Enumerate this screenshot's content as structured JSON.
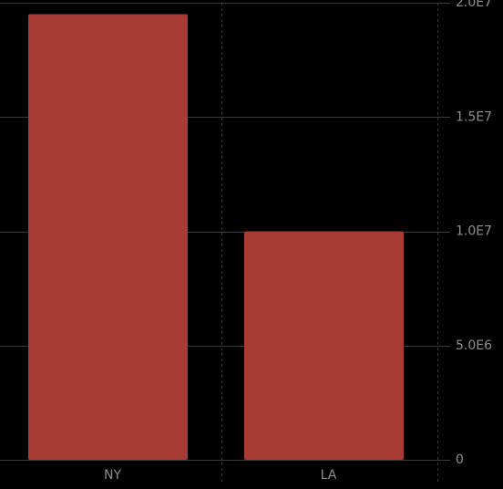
{
  "chart_data": {
    "type": "bar",
    "categories": [
      "NY",
      "LA"
    ],
    "values": [
      19500000,
      10000000
    ],
    "ylim": [
      0,
      20000000
    ],
    "yticks": [
      0,
      5000000,
      10000000,
      15000000,
      20000000
    ],
    "ytick_labels": [
      "0",
      "5.0E6",
      "1.0E7",
      "1.5E7",
      "2.0E7"
    ],
    "y_axis_position": "right",
    "grid": true,
    "legend": "none",
    "colors": {
      "background": "#000000",
      "bar": "#a83c34",
      "grid": "#3a3a3c",
      "tick_text": "#8e8e93"
    }
  }
}
